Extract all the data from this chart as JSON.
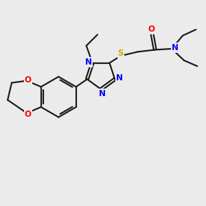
{
  "bg_color": "#ebebeb",
  "bond_color": "#1a1a1a",
  "N_color": "#0000ff",
  "O_color": "#ff0000",
  "S_color": "#ccaa00",
  "line_width": 1.6,
  "figsize": [
    3.0,
    3.0
  ],
  "dpi": 100,
  "xlim": [
    0,
    10
  ],
  "ylim": [
    0,
    10
  ]
}
